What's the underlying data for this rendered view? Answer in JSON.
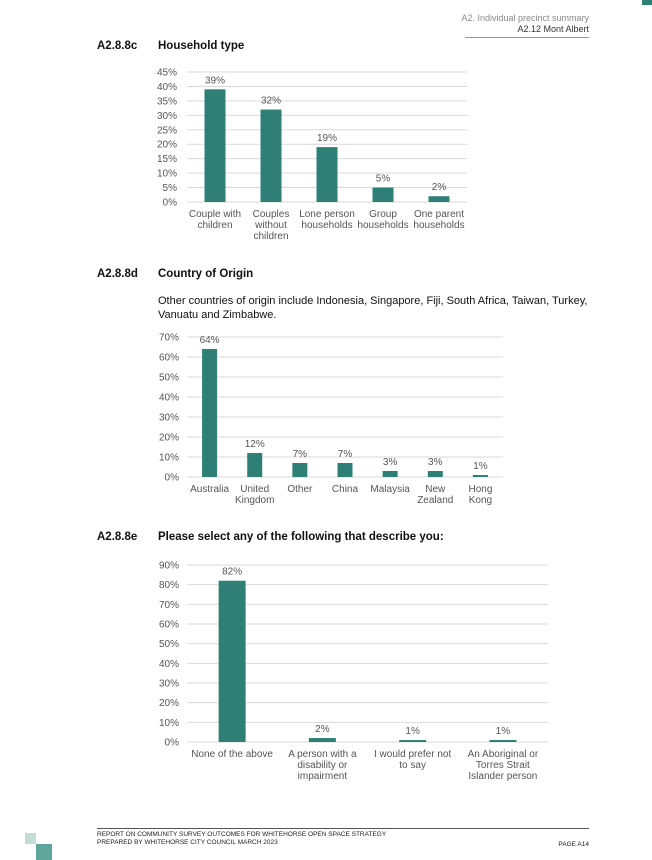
{
  "header": {
    "line1": "A2. Individual precinct summary",
    "line2": "A2.12 Mont Albert"
  },
  "colors": {
    "bar": "#2e8076",
    "grid": "#d9d9d9",
    "text": "#595959"
  },
  "sections": [
    {
      "num": "A2.8.8c",
      "title": "Household type"
    },
    {
      "num": "A2.8.8d",
      "title": "Country of Origin"
    },
    {
      "num": "A2.8.8e",
      "title": "Please select any of the following that describe you:"
    }
  ],
  "country_note": "Other countries of origin include Indonesia, Singapore, Fiji, South Africa, Taiwan, Turkey, Vanuatu and Zimbabwe.",
  "chart_data": [
    {
      "type": "bar",
      "categories": [
        [
          "Couple with",
          "children"
        ],
        [
          "Couples",
          "without",
          "children"
        ],
        [
          "Lone person",
          "households"
        ],
        [
          "Group",
          "households"
        ],
        [
          "One parent",
          "households"
        ]
      ],
      "values": [
        39,
        32,
        19,
        5,
        2
      ],
      "data_labels": [
        "39%",
        "32%",
        "19%",
        "5%",
        "2%"
      ],
      "yticks": [
        "0%",
        "5%",
        "10%",
        "15%",
        "20%",
        "25%",
        "30%",
        "35%",
        "40%",
        "45%"
      ],
      "ylim": [
        0,
        45
      ],
      "grid": true
    },
    {
      "type": "bar",
      "categories": [
        [
          "Australia"
        ],
        [
          "United",
          "Kingdom"
        ],
        [
          "Other"
        ],
        [
          "China"
        ],
        [
          "Malaysia"
        ],
        [
          "New",
          "Zealand"
        ],
        [
          "Hong",
          "Kong"
        ]
      ],
      "values": [
        64,
        12,
        7,
        7,
        3,
        3,
        1
      ],
      "data_labels": [
        "64%",
        "12%",
        "7%",
        "7%",
        "3%",
        "3%",
        "1%"
      ],
      "yticks": [
        "0%",
        "10%",
        "20%",
        "30%",
        "40%",
        "50%",
        "60%",
        "70%"
      ],
      "ylim": [
        0,
        70
      ],
      "grid": true
    },
    {
      "type": "bar",
      "categories": [
        [
          "None of the above"
        ],
        [
          "A person with a",
          "disability or",
          "impairment"
        ],
        [
          "I would prefer not",
          "to say"
        ],
        [
          "An Aboriginal or",
          "Torres Strait",
          "Islander person"
        ]
      ],
      "values": [
        82,
        2,
        1,
        1
      ],
      "data_labels": [
        "82%",
        "2%",
        "1%",
        "1%"
      ],
      "yticks": [
        "0%",
        "10%",
        "20%",
        "30%",
        "40%",
        "50%",
        "60%",
        "70%",
        "80%",
        "90%"
      ],
      "ylim": [
        0,
        90
      ],
      "grid": true
    }
  ],
  "footer": {
    "line1": "REPORT ON COMMUNITY SURVEY OUTCOMES FOR WHITEHORSE OPEN SPACE STRATEGY",
    "line2": "PREPARED BY WHITEHORSE CITY COUNCIL MARCH 2023",
    "page": "PAGE A14"
  }
}
